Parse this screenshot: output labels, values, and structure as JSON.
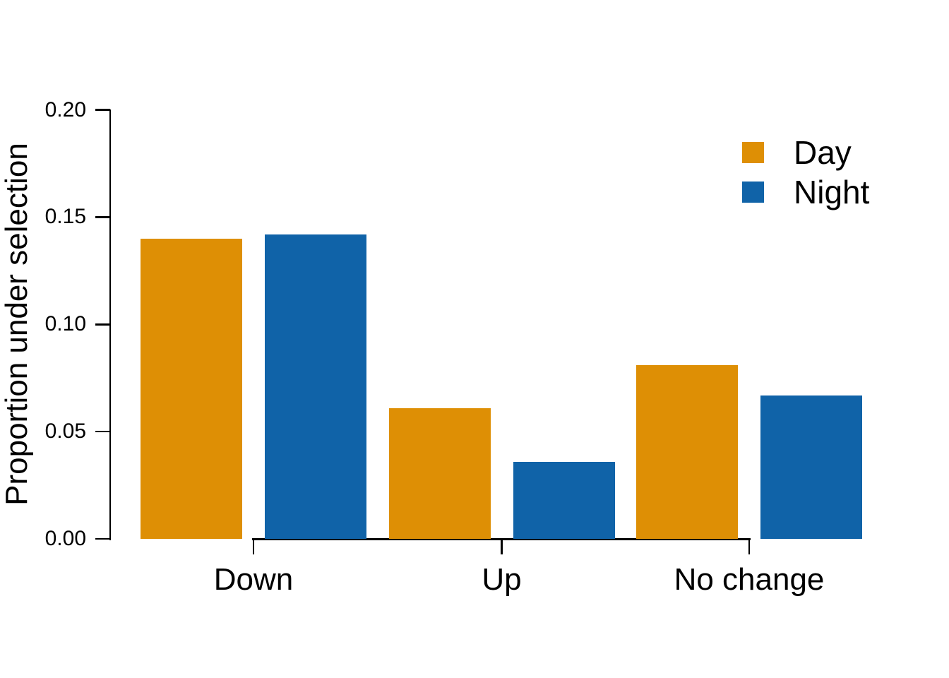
{
  "chart_data": {
    "type": "bar",
    "title": "",
    "categories": [
      "Down",
      "Up",
      "No change"
    ],
    "series": [
      {
        "name": "Day",
        "color": "#DE8F05",
        "values": [
          0.14,
          0.061,
          0.081
        ]
      },
      {
        "name": "Night",
        "color": "#1063A8",
        "values": [
          0.142,
          0.036,
          0.067
        ]
      }
    ],
    "xlabel": "",
    "ylabel": "Proportion under selection",
    "ylim": [
      0,
      0.2
    ],
    "ytick_labels": [
      "0.00",
      "0.05",
      "0.10",
      "0.15",
      "0.20"
    ],
    "grid": false,
    "legend": {
      "position": "top-right",
      "entries": [
        "Day",
        "Night"
      ]
    },
    "axis_color": "#000000",
    "background_color": "#ffffff"
  }
}
